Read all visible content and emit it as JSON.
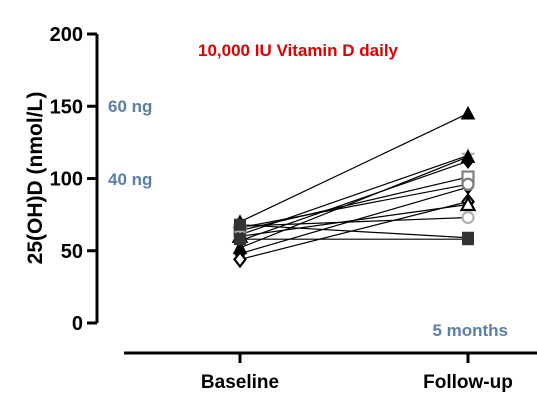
{
  "chart_data": {
    "type": "line",
    "title": "10,000 IU Vitamin D daily",
    "title_color": "#e00000",
    "ylabel": "25(OH)D (nmol/L)",
    "xlabel": "",
    "categories": [
      "Baseline",
      "Follow-up"
    ],
    "ylim": [
      0,
      200
    ],
    "yticks": [
      "0",
      "50",
      "100",
      "150",
      "200"
    ],
    "grid": false,
    "legend": "none",
    "annotations": [
      {
        "text": "60 ng",
        "y": 150
      },
      {
        "text": "40 ng",
        "y": 100
      }
    ],
    "note": "5 months",
    "annotation_color": "#5b7fa6",
    "series": [
      {
        "values": [
          70,
          145
        ],
        "marker": "triangle",
        "color": "#000000"
      },
      {
        "values": [
          61,
          116
        ],
        "marker": "star",
        "color": "#b0b0b0"
      },
      {
        "values": [
          57,
          112
        ],
        "marker": "diamond",
        "color": "#000000"
      },
      {
        "values": [
          52,
          115
        ],
        "marker": "triangle",
        "color": "#000000"
      },
      {
        "values": [
          64,
          101
        ],
        "marker": "square-open",
        "color": "#808080"
      },
      {
        "values": [
          48,
          94
        ],
        "marker": "diamond",
        "color": "#000000"
      },
      {
        "values": [
          66,
          96
        ],
        "marker": "circle-open",
        "color": "#808080"
      },
      {
        "values": [
          44,
          84
        ],
        "marker": "diamond-open",
        "color": "#000000"
      },
      {
        "values": [
          60,
          82
        ],
        "marker": "triangle-open",
        "color": "#000000"
      },
      {
        "values": [
          67,
          73
        ],
        "marker": "circle-open",
        "color": "#b0b0b0"
      },
      {
        "values": [
          68,
          59
        ],
        "marker": "square",
        "color": "#333333"
      },
      {
        "values": [
          58,
          58
        ],
        "marker": "square",
        "color": "#333333"
      }
    ]
  }
}
